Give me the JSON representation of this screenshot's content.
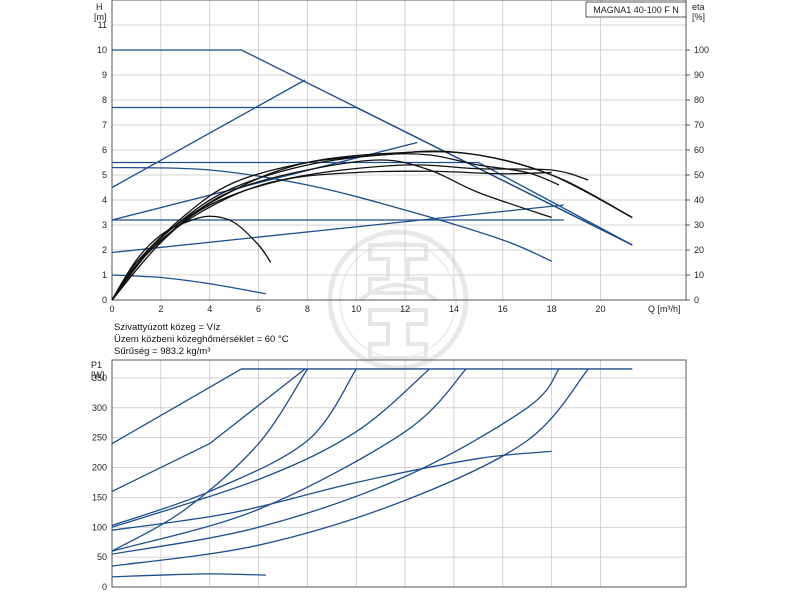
{
  "colors": {
    "blue": "#1f4e8c",
    "black": "#111111",
    "grid": "#c8c8c8",
    "watermark": "#d9d9d9"
  },
  "chart_data": [
    {
      "type": "line",
      "title": "MAGNA1 40-100 F N",
      "ylabel": "H",
      "yunit": "[m]",
      "y2label": "eta",
      "y2unit": "[%]",
      "xlabel": "Q [m³/h]",
      "xlim": [
        0,
        23.5
      ],
      "ylim": [
        0,
        12
      ],
      "y2lim": [
        0,
        120
      ],
      "xticks": [
        "0",
        "2",
        "4",
        "6",
        "8",
        "10",
        "12",
        "14",
        "16",
        "18",
        "20"
      ],
      "yticks": [
        "0",
        "1",
        "2",
        "3",
        "4",
        "5",
        "6",
        "7",
        "8",
        "9",
        "10",
        "11"
      ],
      "y2ticks": [
        "0",
        "10",
        "20",
        "30",
        "40",
        "50",
        "60",
        "70",
        "80",
        "90",
        "100"
      ],
      "grid": true,
      "head_lines": [
        [
          [
            0,
            10
          ],
          [
            5.3,
            10
          ],
          [
            21.3,
            2.2
          ]
        ],
        [
          [
            0,
            7.7
          ],
          [
            10,
            7.7
          ],
          [
            21.3,
            2.2
          ]
        ],
        [
          [
            0,
            4.5
          ],
          [
            7.9,
            8.8
          ]
        ],
        [
          [
            0,
            5.5
          ],
          [
            15,
            5.5
          ],
          [
            21.3,
            2.2
          ]
        ],
        [
          [
            0,
            3.2
          ],
          [
            18.5,
            3.2
          ]
        ],
        [
          [
            0,
            1.9
          ],
          [
            18.5,
            3.8
          ]
        ],
        [
          [
            0,
            3.2
          ],
          [
            12.5,
            6.3
          ]
        ],
        [
          [
            0,
            5.3
          ],
          [
            4,
            5.2
          ],
          [
            8,
            4.6
          ],
          [
            12,
            3.6
          ],
          [
            16,
            2.4
          ],
          [
            18,
            1.55
          ]
        ],
        [
          [
            0,
            1.0
          ],
          [
            2,
            0.9
          ],
          [
            4,
            0.65
          ],
          [
            6.3,
            0.25
          ]
        ]
      ],
      "efficiency_curves": [
        [
          [
            0,
            0
          ],
          [
            1,
            1.6
          ],
          [
            2,
            2.6
          ],
          [
            3,
            3.1
          ],
          [
            4,
            3.35
          ],
          [
            5,
            3.1
          ],
          [
            6,
            2.2
          ],
          [
            6.5,
            1.5
          ]
        ],
        [
          [
            0,
            0
          ],
          [
            1,
            1.4
          ],
          [
            3,
            3.2
          ],
          [
            5,
            4.4
          ],
          [
            8,
            5.2
          ],
          [
            11,
            5.6
          ],
          [
            13,
            5.2
          ],
          [
            15,
            4.3
          ],
          [
            18,
            3.3
          ]
        ],
        [
          [
            0,
            0
          ],
          [
            1,
            1.5
          ],
          [
            3,
            3.3
          ],
          [
            5,
            4.5
          ],
          [
            8,
            5.4
          ],
          [
            11,
            5.8
          ],
          [
            13,
            5.8
          ],
          [
            15,
            5.4
          ],
          [
            17,
            5.1
          ],
          [
            18.3,
            4.6
          ]
        ],
        [
          [
            0,
            0
          ],
          [
            1,
            1.5
          ],
          [
            3,
            3.4
          ],
          [
            5,
            4.7
          ],
          [
            8,
            5.5
          ],
          [
            11,
            5.8
          ],
          [
            13.5,
            5.95
          ],
          [
            16,
            5.6
          ],
          [
            18.5,
            4.8
          ],
          [
            21.3,
            3.3
          ]
        ],
        [
          [
            0,
            0
          ],
          [
            2,
            2.3
          ],
          [
            4,
            3.8
          ],
          [
            7,
            4.8
          ],
          [
            10,
            5.1
          ],
          [
            13,
            5.15
          ],
          [
            16,
            5.05
          ],
          [
            18,
            5.1
          ]
        ],
        [
          [
            0,
            0
          ],
          [
            2,
            2.4
          ],
          [
            5,
            4.2
          ],
          [
            8,
            5.0
          ],
          [
            12,
            5.4
          ],
          [
            15,
            5.25
          ],
          [
            18,
            5.2
          ],
          [
            19.5,
            4.8
          ]
        ],
        [
          [
            0,
            0
          ],
          [
            2,
            2.5
          ],
          [
            5,
            4.4
          ],
          [
            8,
            5.5
          ],
          [
            12,
            5.9
          ],
          [
            15,
            5.8
          ],
          [
            18,
            5.0
          ],
          [
            21.3,
            3.3
          ]
        ]
      ],
      "notes": [
        "Szivattyúzott közeg = Víz",
        "Üzem közbeni közeghőmérséklet = 60 °C",
        "Sűrűség = 983.2 kg/m³"
      ]
    },
    {
      "type": "line",
      "ylabel": "P1",
      "yunit": "[W]",
      "xlim": [
        0,
        23.5
      ],
      "ylim": [
        0,
        380
      ],
      "yticks": [
        "0",
        "50",
        "100",
        "150",
        "200",
        "250",
        "300",
        "350"
      ],
      "grid": true,
      "power_curves": [
        [
          [
            0,
            240
          ],
          [
            5.3,
            365
          ],
          [
            21.3,
            365
          ]
        ],
        [
          [
            0,
            160
          ],
          [
            4,
            240
          ],
          [
            7.9,
            365
          ]
        ],
        [
          [
            0,
            103
          ],
          [
            4,
            160
          ],
          [
            8,
            245
          ],
          [
            10,
            365
          ]
        ],
        [
          [
            0,
            60
          ],
          [
            3,
            130
          ],
          [
            6,
            240
          ],
          [
            8,
            365
          ]
        ],
        [
          [
            0,
            100
          ],
          [
            6,
            180
          ],
          [
            10,
            260
          ],
          [
            13,
            365
          ]
        ],
        [
          [
            0,
            60
          ],
          [
            6,
            130
          ],
          [
            12,
            260
          ],
          [
            14.5,
            365
          ]
        ],
        [
          [
            0,
            95
          ],
          [
            5,
            125
          ],
          [
            10,
            175
          ],
          [
            15,
            215
          ],
          [
            18,
            227
          ]
        ],
        [
          [
            0,
            55
          ],
          [
            6,
            100
          ],
          [
            12,
            185
          ],
          [
            17,
            300
          ],
          [
            18.3,
            365
          ]
        ],
        [
          [
            0,
            35
          ],
          [
            6,
            70
          ],
          [
            12,
            145
          ],
          [
            17,
            245
          ],
          [
            19.5,
            365
          ]
        ],
        [
          [
            0,
            17
          ],
          [
            2,
            20
          ],
          [
            4,
            22
          ],
          [
            6.3,
            20
          ]
        ]
      ]
    }
  ]
}
